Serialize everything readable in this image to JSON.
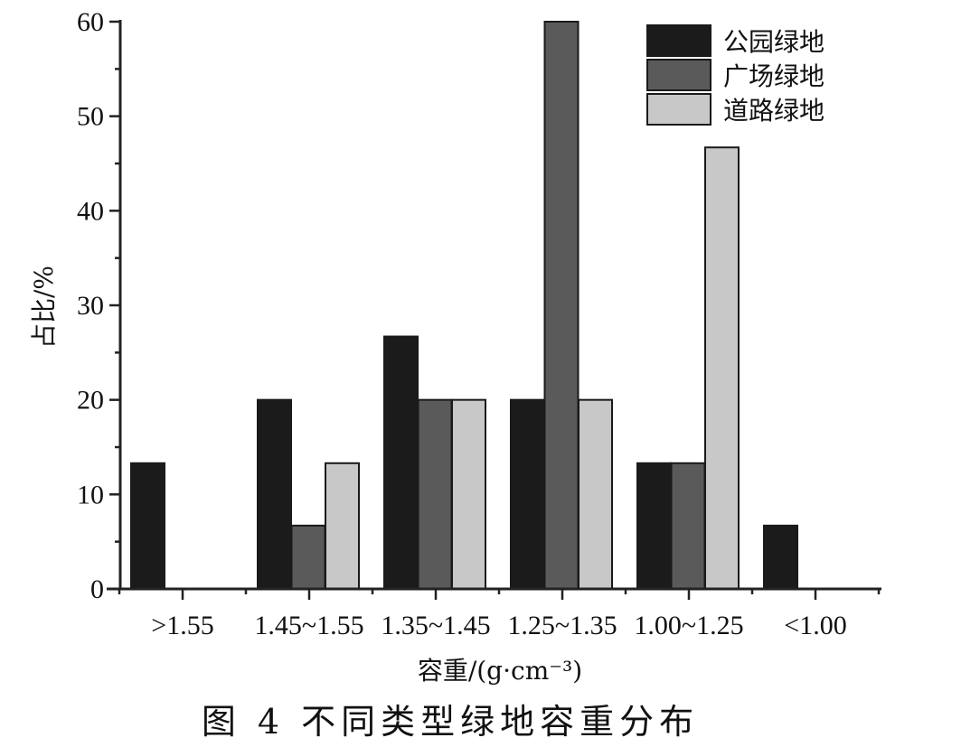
{
  "caption": "图 4   不同类型绿地容重分布",
  "chart_data": {
    "type": "bar",
    "title": "",
    "xlabel": "容重/(g·cm⁻³)",
    "ylabel": "占比/%",
    "ylim": [
      0,
      60
    ],
    "yticks": [
      0,
      10,
      20,
      30,
      40,
      50,
      60
    ],
    "grid": false,
    "legend_position": "top-right",
    "categories": [
      ">1.55",
      "1.45~1.55",
      "1.35~1.45",
      "1.25~1.35",
      "1.00~1.25",
      "<1.00"
    ],
    "series": [
      {
        "name": "公园绿地",
        "color": "#1b1b1b",
        "values": [
          13.3,
          20,
          26.7,
          20,
          13.3,
          6.7
        ]
      },
      {
        "name": "广场绿地",
        "color": "#5a5a5a",
        "values": [
          0,
          6.7,
          20,
          60,
          13.3,
          0
        ]
      },
      {
        "name": "道路绿地",
        "color": "#c8c8c8",
        "values": [
          0,
          13.3,
          20,
          20,
          46.7,
          0
        ]
      }
    ]
  }
}
